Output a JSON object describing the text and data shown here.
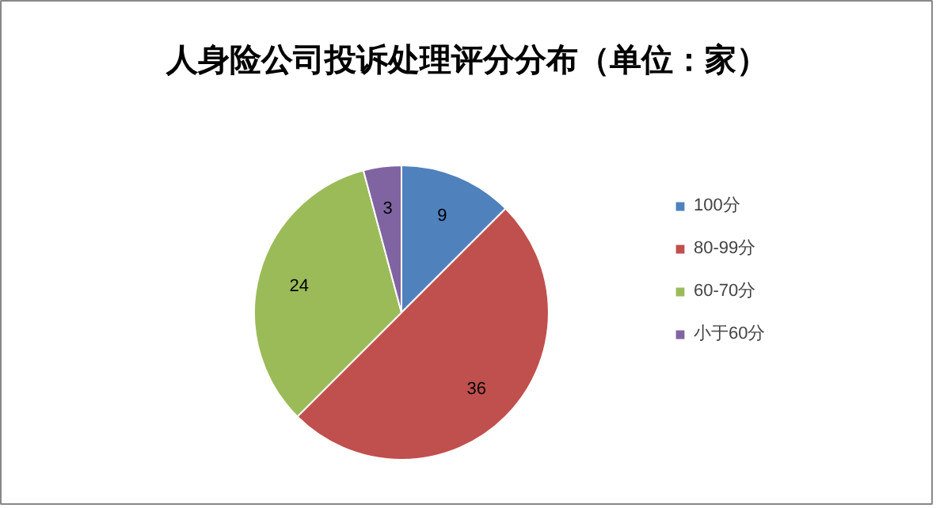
{
  "chart_data": {
    "type": "pie",
    "title": "人身险公司投诉处理评分分布（单位：家）",
    "categories": [
      "100分",
      "80-99分",
      "60-70分",
      "小于60分"
    ],
    "values": [
      9,
      36,
      24,
      3
    ],
    "colors": [
      "#4f81bd",
      "#c0504d",
      "#9bbb59",
      "#8064a2"
    ],
    "data_labels": true,
    "legend": "right"
  }
}
